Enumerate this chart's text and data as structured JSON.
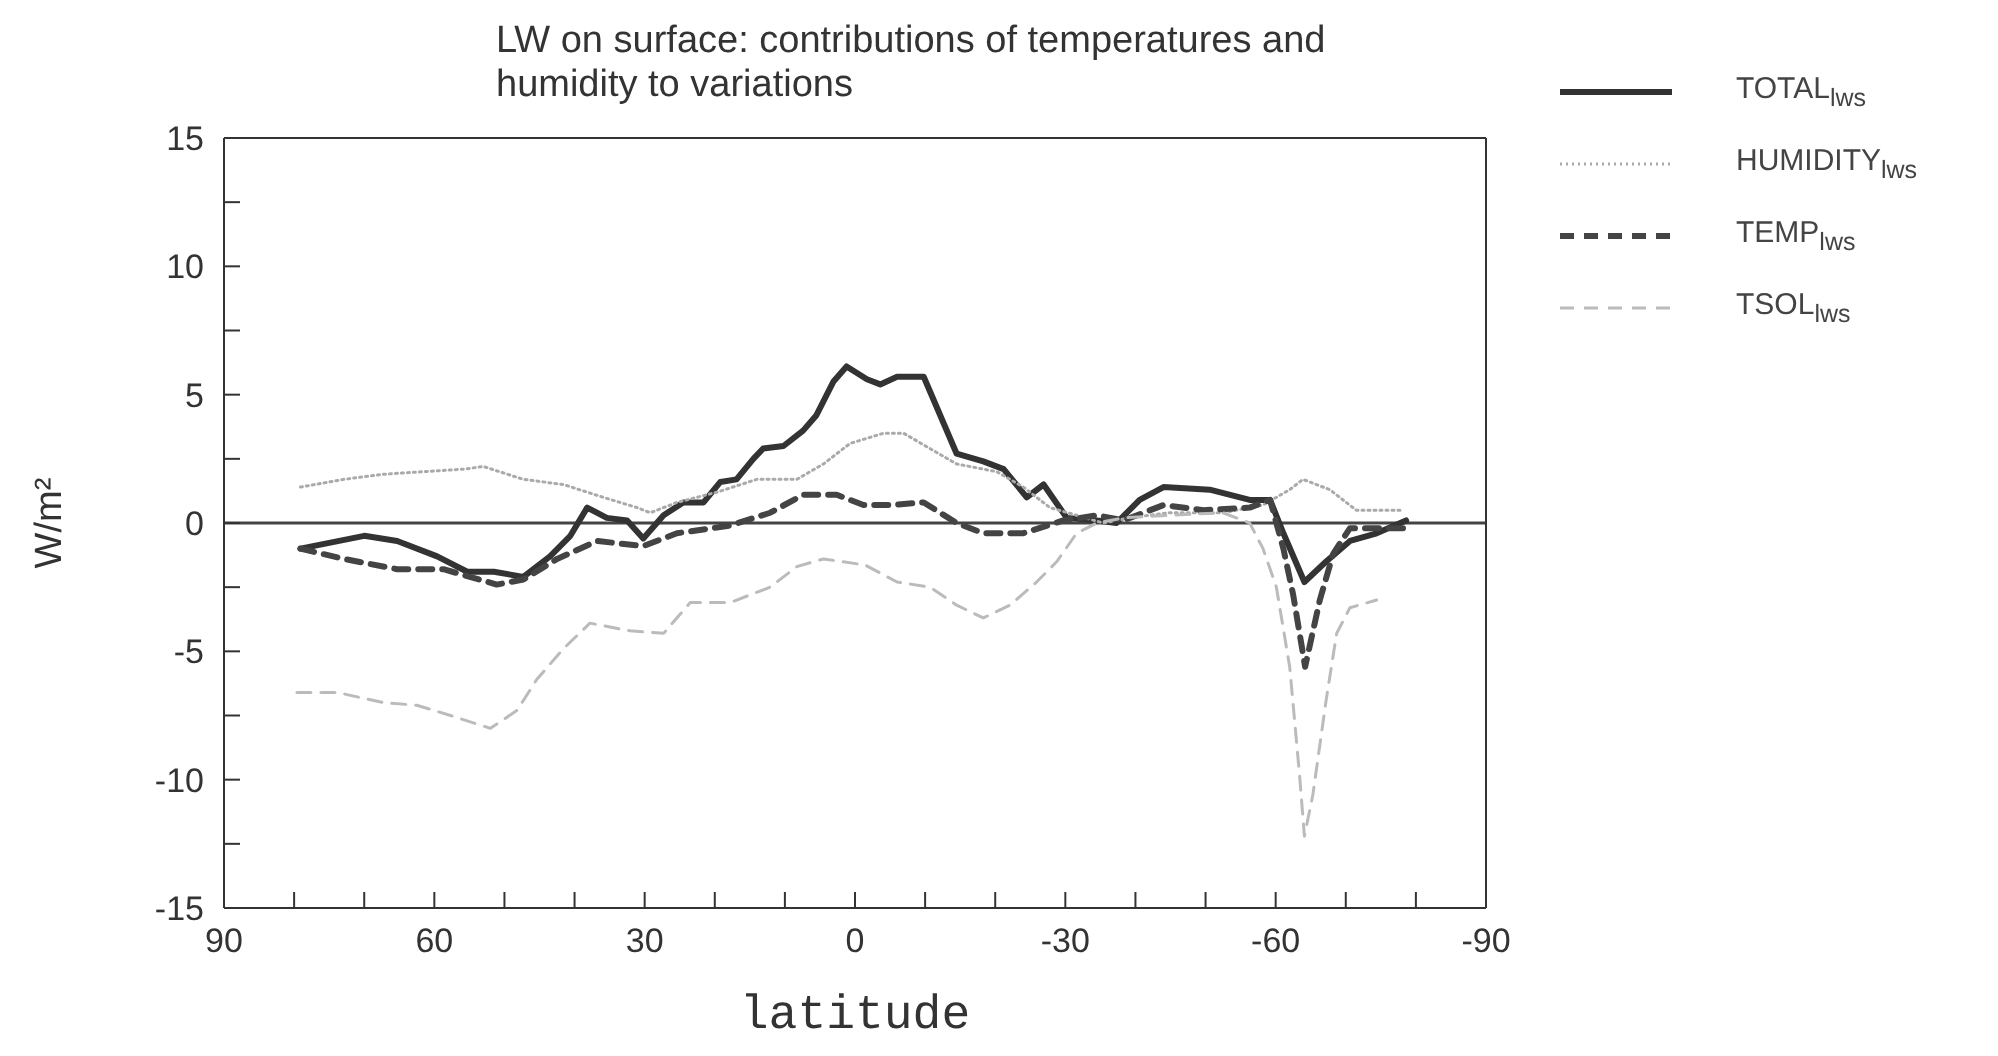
{
  "chart_data": {
    "type": "line",
    "title": "LW on surface: contributions of temperatures and humidity to variations",
    "xlabel": "latitude",
    "ylabel": "W/m²",
    "xlim": [
      90,
      -90
    ],
    "xticks": [
      90,
      {
        "value": 80,
        "label": null
      },
      {
        "value": 70,
        "label": null
      },
      60,
      {
        "value": 50,
        "label": null
      },
      {
        "value": 40,
        "label": null
      },
      30,
      {
        "value": 20,
        "label": null
      },
      {
        "value": 10,
        "label": null
      },
      0,
      {
        "value": -10,
        "label": null
      },
      {
        "value": -20,
        "label": null
      },
      -30,
      {
        "value": -40,
        "label": null
      },
      {
        "value": -50,
        "label": null
      },
      -60,
      {
        "value": -70,
        "label": null
      },
      {
        "value": -80,
        "label": null
      },
      -90
    ],
    "ylim": [
      -15,
      15
    ],
    "yticks": [
      -15,
      {
        "value": -12.5,
        "label": null
      },
      -10,
      {
        "value": -7.5,
        "label": null
      },
      -5,
      {
        "value": -2.5,
        "label": null
      },
      0,
      {
        "value": 2.5,
        "label": null
      },
      5,
      {
        "value": 7.5,
        "label": null
      },
      10,
      {
        "value": 12.5,
        "label": null
      },
      15
    ],
    "grid": false,
    "legend": "right",
    "marker": "none",
    "ref_lines": [
      {
        "axis": "y",
        "value": 0,
        "color": "#444444",
        "line_style": "solid"
      }
    ],
    "series": [
      {
        "name": "TOTAL$_{lws}$",
        "color": "#333333",
        "line_style": "solid",
        "x": [
          79.1,
          70,
          65.3,
          59.6,
          55.3,
          51.5,
          47.3,
          43.5,
          40.6,
          38.2,
          35.4,
          32.5,
          30.2,
          27.3,
          24.5,
          21.6,
          19.2,
          16.9,
          14.5,
          13.1,
          10.2,
          7.4,
          5.5,
          3.1,
          1.2,
          -1.7,
          -3.6,
          -6,
          -9.8,
          -14.5,
          -18.3,
          -21.2,
          -24.5,
          -26.9,
          -30.2,
          -34.5,
          -37.3,
          -40.6,
          -44,
          -50.6,
          -56.3,
          -59.2,
          -61.1,
          -64.1,
          -67.2,
          -70.6,
          -74.4,
          -78.6
        ],
        "values": [
          -1.0,
          -0.5,
          -0.7,
          -1.3,
          -1.9,
          -1.9,
          -2.1,
          -1.3,
          -0.5,
          0.6,
          0.2,
          0.1,
          -0.6,
          0.3,
          0.8,
          0.8,
          1.6,
          1.7,
          2.5,
          2.9,
          3.0,
          3.6,
          4.2,
          5.5,
          6.1,
          5.6,
          5.4,
          5.7,
          5.7,
          2.7,
          2.4,
          2.1,
          1.0,
          1.5,
          0.2,
          0.1,
          0,
          0.9,
          1.4,
          1.3,
          0.9,
          0.9,
          -0.4,
          -2.3,
          -1.5,
          -0.7,
          -0.4,
          0.1
        ]
      },
      {
        "name": "HUMIDITY$_{lws}$",
        "color": "#aaaaaa",
        "line_style": "dotted",
        "x": [
          79.1,
          72.9,
          67.2,
          61.5,
          55.8,
          53,
          47.3,
          41.6,
          35.9,
          31.1,
          29.2,
          25.4,
          19.7,
          14,
          8.3,
          4.5,
          0.7,
          -4.1,
          -6.9,
          -10.7,
          -14.5,
          -20.2,
          -24,
          -27.8,
          -31.6,
          -35.4,
          -39.2,
          -44.9,
          -52.5,
          -58.2,
          -62,
          -63.9,
          -67.7,
          -71.5,
          -78.2
        ],
        "values": [
          1.4,
          1.7,
          1.9,
          2.0,
          2.1,
          2.2,
          1.7,
          1.5,
          1.0,
          0.6,
          0.4,
          0.8,
          1.2,
          1.7,
          1.7,
          2.3,
          3.1,
          3.5,
          3.5,
          2.9,
          2.3,
          2.0,
          1.4,
          0.6,
          0.3,
          0,
          0.2,
          0.4,
          0.4,
          0.7,
          1.3,
          1.7,
          1.3,
          0.5,
          0.5
        ]
      },
      {
        "name": "TEMP$_{lws}$",
        "color": "#444444",
        "line_style": "dashed",
        "x": [
          79.1,
          72.9,
          65.3,
          58.7,
          51.1,
          47.3,
          42.5,
          36.8,
          30.2,
          25.4,
          17.8,
          12.1,
          7.4,
          2.6,
          -1.2,
          -5,
          -9.8,
          -14.5,
          -18.3,
          -24,
          -29.7,
          -34.5,
          -38.3,
          -44,
          -49.7,
          -56.3,
          -59.2,
          -61.1,
          -62.5,
          -64.2,
          -66.3,
          -68.2,
          -70.6,
          -74.4,
          -78.2
        ],
        "values": [
          -1.0,
          -1.4,
          -1.8,
          -1.8,
          -2.4,
          -2.2,
          -1.4,
          -0.7,
          -0.9,
          -0.4,
          -0.1,
          0.4,
          1.1,
          1.1,
          0.7,
          0.7,
          0.8,
          0,
          -0.4,
          -0.4,
          0.1,
          0.3,
          0.1,
          0.7,
          0.5,
          0.6,
          0.9,
          -1.0,
          -2.8,
          -5.6,
          -3.0,
          -1.2,
          -0.2,
          -0.2,
          -0.2
        ]
      },
      {
        "name": "TSOL$_{lws}$",
        "color": "#bbbbbb",
        "line_style": "dashed",
        "x": [
          79.6,
          73.9,
          67.2,
          62.5,
          57.7,
          52,
          48.2,
          45.4,
          41.6,
          37.8,
          32.1,
          27.3,
          23.5,
          17.8,
          12.1,
          8.3,
          4.5,
          -0.5,
          -1.2,
          -6,
          -10.7,
          -14.5,
          -18.3,
          -22.1,
          -25.9,
          -28.8,
          -31.6,
          -34.5,
          -38.3,
          -44.9,
          -52.5,
          -56.3,
          -58.2,
          -60.1,
          -62,
          -63.4,
          -64.1,
          -65.3,
          -67.2,
          -68.7,
          -70.6,
          -74.4
        ],
        "values": [
          -6.6,
          -6.6,
          -7.0,
          -7.1,
          -7.5,
          -8.0,
          -7.3,
          -6.1,
          -4.9,
          -3.9,
          -4.2,
          -4.3,
          -3.1,
          -3.1,
          -2.5,
          -1.7,
          -1.4,
          -1.6,
          -1.6,
          -2.3,
          -2.5,
          -3.2,
          -3.7,
          -3.2,
          -2.3,
          -1.5,
          -0.4,
          0,
          0.2,
          0.3,
          0.4,
          0,
          -1.0,
          -2.5,
          -5.6,
          -9.8,
          -12.2,
          -10.6,
          -6.9,
          -4.3,
          -3.3,
          -3.0
        ]
      }
    ]
  }
}
